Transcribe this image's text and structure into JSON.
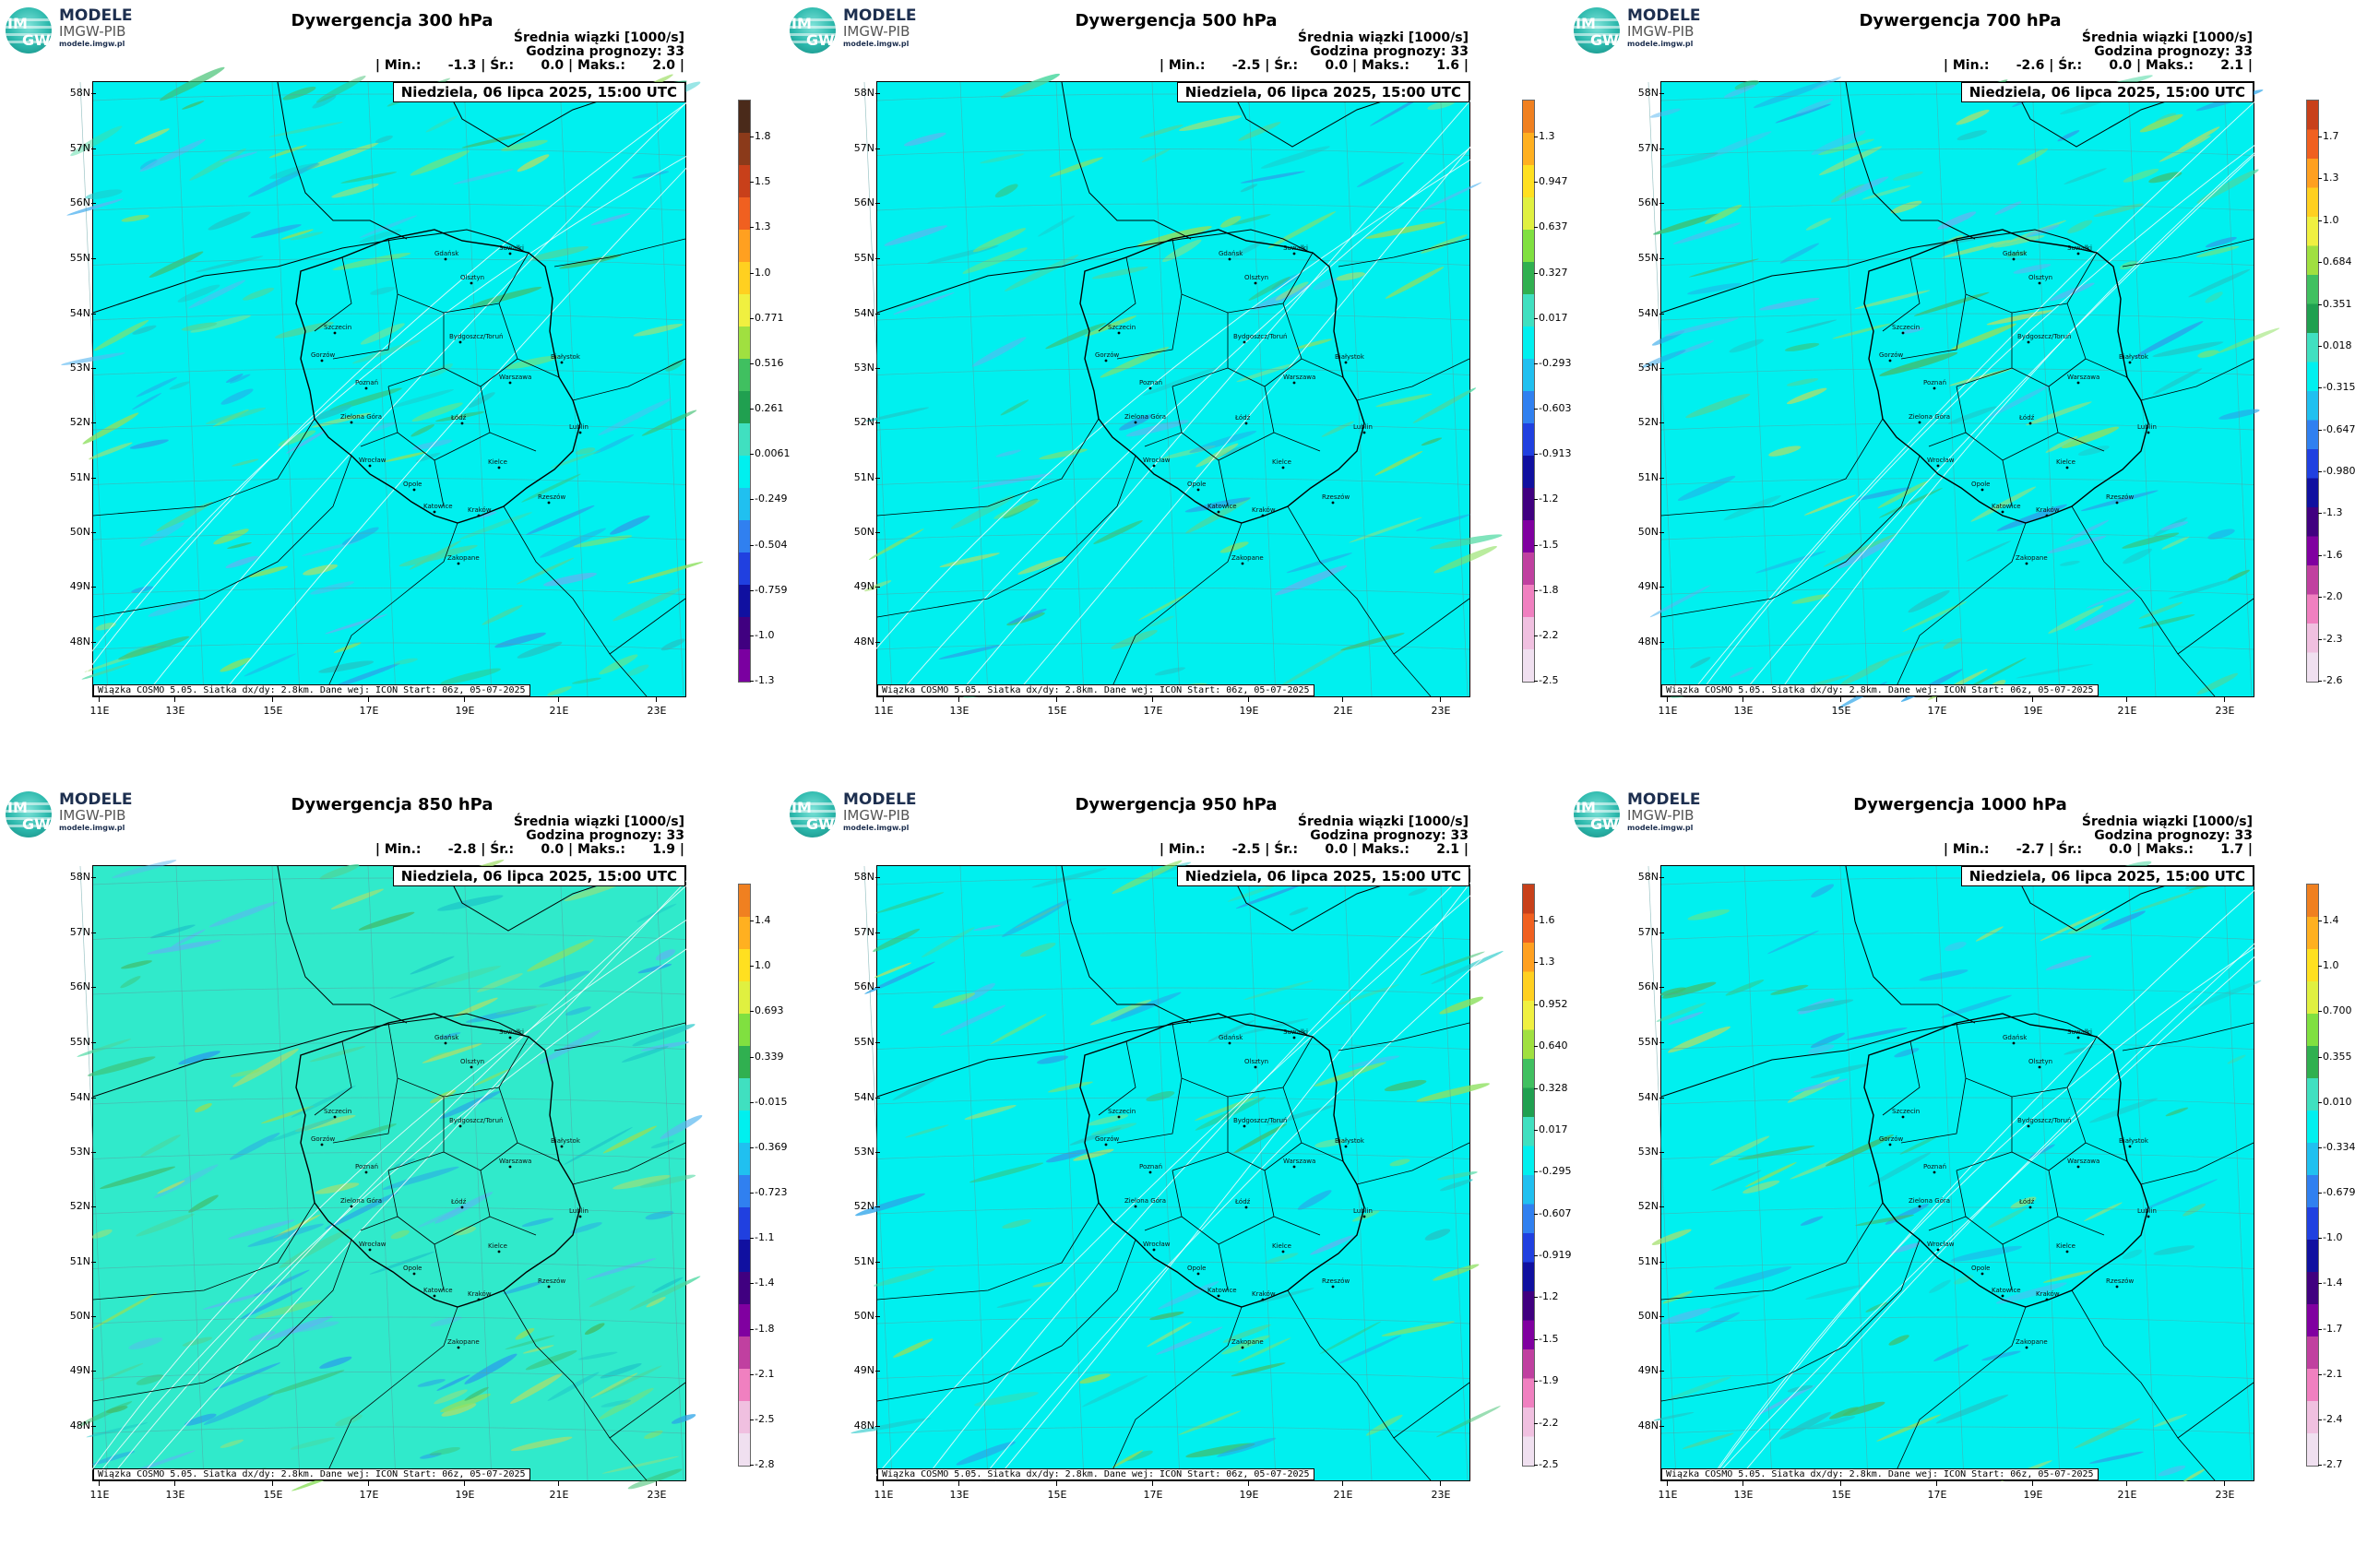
{
  "logo": {
    "line1": "MODELE",
    "line2": "IMGW-PIB",
    "line3": "modele.imgw.pl",
    "im": "IM",
    "gw": "GW"
  },
  "common": {
    "subtitle": "Średnia wiązki [1000/s]",
    "forecast_hour": "Godzina prognozy: 33",
    "date": "Niedziela, 06 lipca 2025, 15:00 UTC",
    "footer": "Wiązka COSMO 5.05. Siatka dx/dy: 2.8km. Dane wej: ICON Start: 06z, 05-07-2025",
    "lat_labels": [
      "58N",
      "57N",
      "56N",
      "55N",
      "54N",
      "53N",
      "52N",
      "51N",
      "50N",
      "49N",
      "48N"
    ],
    "lon_labels": [
      "11E",
      "13E",
      "15E",
      "17E",
      "19E",
      "21E",
      "23E"
    ],
    "cities": [
      "Gdańsk",
      "Suwałki",
      "Olsztyn",
      "Szczecin",
      "Bydgoszcz/Toruń",
      "Białystok",
      "Gorzów",
      "Poznań",
      "Warszawa",
      "Zielona Góra",
      "Łódź",
      "Lublin",
      "Wrocław",
      "Kielce",
      "Opole",
      "Rzeszów",
      "Katowice",
      "Kraków",
      "Zakopane"
    ],
    "colors": {
      "field": "#00f0ef",
      "field_green": "#3de8b0",
      "border": "#000000",
      "contour": "#ffffff"
    }
  },
  "panels": [
    {
      "title": "Dywergencja 300 hPa",
      "stats": "| Min.:      -1.3 | Śr.:      0.0 | Maks.:      2.0 |",
      "cb_labels": [
        "1.8",
        "1.5",
        "1.3",
        "1.0",
        "0.771",
        "0.516",
        "0.261",
        "0.0061",
        "-0.249",
        "-0.504",
        "-0.759",
        "-1.0",
        "-1.3"
      ],
      "cb_colors": [
        "#4a2a1a",
        "#8b3a1a",
        "#c8401a",
        "#f06020",
        "#ffa020",
        "#ffd020",
        "#f0f040",
        "#a0e040",
        "#40c060",
        "#20a050",
        "#40e0c0",
        "#00f0ef",
        "#20c0f0",
        "#3080f0",
        "#2040e0",
        "#1010a0",
        "#400080",
        "#7a00a0"
      ]
    },
    {
      "title": "Dywergencja 500 hPa",
      "stats": "| Min.:      -2.5 | Śr.:      0.0 | Maks.:      1.6 |",
      "cb_labels": [
        "1.3",
        "0.947",
        "0.637",
        "0.327",
        "0.017",
        "-0.293",
        "-0.603",
        "-0.913",
        "-1.2",
        "-1.5",
        "-1.8",
        "-2.2",
        "-2.5"
      ],
      "cb_colors": [
        "#f08020",
        "#ffb020",
        "#ffe020",
        "#e0f040",
        "#80e040",
        "#30b050",
        "#40e0c0",
        "#00f0ef",
        "#20c0f0",
        "#3080f0",
        "#2040e0",
        "#1010a0",
        "#400080",
        "#8000a0",
        "#c040a0",
        "#f080c0",
        "#f0c0e0",
        "#f0e0f0"
      ]
    },
    {
      "title": "Dywergencja 700 hPa",
      "stats": "| Min.:      -2.6 | Śr.:      0.0 | Maks.:      2.1 |",
      "cb_labels": [
        "1.7",
        "1.3",
        "1.0",
        "0.684",
        "0.351",
        "0.018",
        "-0.315",
        "-0.647",
        "-0.980",
        "-1.3",
        "-1.6",
        "-2.0",
        "-2.3",
        "-2.6"
      ],
      "cb_colors": [
        "#c8401a",
        "#f06020",
        "#ffa020",
        "#ffd020",
        "#f0f040",
        "#a0e040",
        "#40c060",
        "#20a050",
        "#40e0c0",
        "#00f0ef",
        "#20c0f0",
        "#3080f0",
        "#2040e0",
        "#1010a0",
        "#400080",
        "#8000a0",
        "#c040a0",
        "#f080c0",
        "#f0c0e0",
        "#f0e0f0"
      ]
    },
    {
      "title": "Dywergencja 850 hPa",
      "stats": "| Min.:      -2.8 | Śr.:      0.0 | Maks.:      1.9 |",
      "cb_labels": [
        "1.4",
        "1.0",
        "0.693",
        "0.339",
        "-0.015",
        "-0.369",
        "-0.723",
        "-1.1",
        "-1.4",
        "-1.8",
        "-2.1",
        "-2.5",
        "-2.8"
      ],
      "cb_colors": [
        "#f08020",
        "#ffb020",
        "#ffe020",
        "#e0f040",
        "#80e040",
        "#30b050",
        "#40e0c0",
        "#00f0ef",
        "#20c0f0",
        "#3080f0",
        "#2040e0",
        "#1010a0",
        "#400080",
        "#8000a0",
        "#c040a0",
        "#f080c0",
        "#f0c0e0",
        "#f0e0f0"
      ]
    },
    {
      "title": "Dywergencja 950 hPa",
      "stats": "| Min.:      -2.5 | Śr.:      0.0 | Maks.:      2.1 |",
      "cb_labels": [
        "1.6",
        "1.3",
        "0.952",
        "0.640",
        "0.328",
        "0.017",
        "-0.295",
        "-0.607",
        "-0.919",
        "-1.2",
        "-1.5",
        "-1.9",
        "-2.2",
        "-2.5"
      ],
      "cb_colors": [
        "#c8401a",
        "#f06020",
        "#ffa020",
        "#ffd020",
        "#f0f040",
        "#a0e040",
        "#40c060",
        "#20a050",
        "#40e0c0",
        "#00f0ef",
        "#20c0f0",
        "#3080f0",
        "#2040e0",
        "#1010a0",
        "#400080",
        "#8000a0",
        "#c040a0",
        "#f080c0",
        "#f0c0e0",
        "#f0e0f0"
      ]
    },
    {
      "title": "Dywergencja 1000 hPa",
      "stats": "| Min.:      -2.7 | Śr.:      0.0 | Maks.:      1.7 |",
      "cb_labels": [
        "1.4",
        "1.0",
        "0.700",
        "0.355",
        "0.010",
        "-0.334",
        "-0.679",
        "-1.0",
        "-1.4",
        "-1.7",
        "-2.1",
        "-2.4",
        "-2.7"
      ],
      "cb_colors": [
        "#f08020",
        "#ffb020",
        "#ffe020",
        "#e0f040",
        "#80e040",
        "#30b050",
        "#40e0c0",
        "#00f0ef",
        "#20c0f0",
        "#3080f0",
        "#2040e0",
        "#1010a0",
        "#400080",
        "#8000a0",
        "#c040a0",
        "#f080c0",
        "#f0c0e0",
        "#f0e0f0"
      ]
    }
  ]
}
